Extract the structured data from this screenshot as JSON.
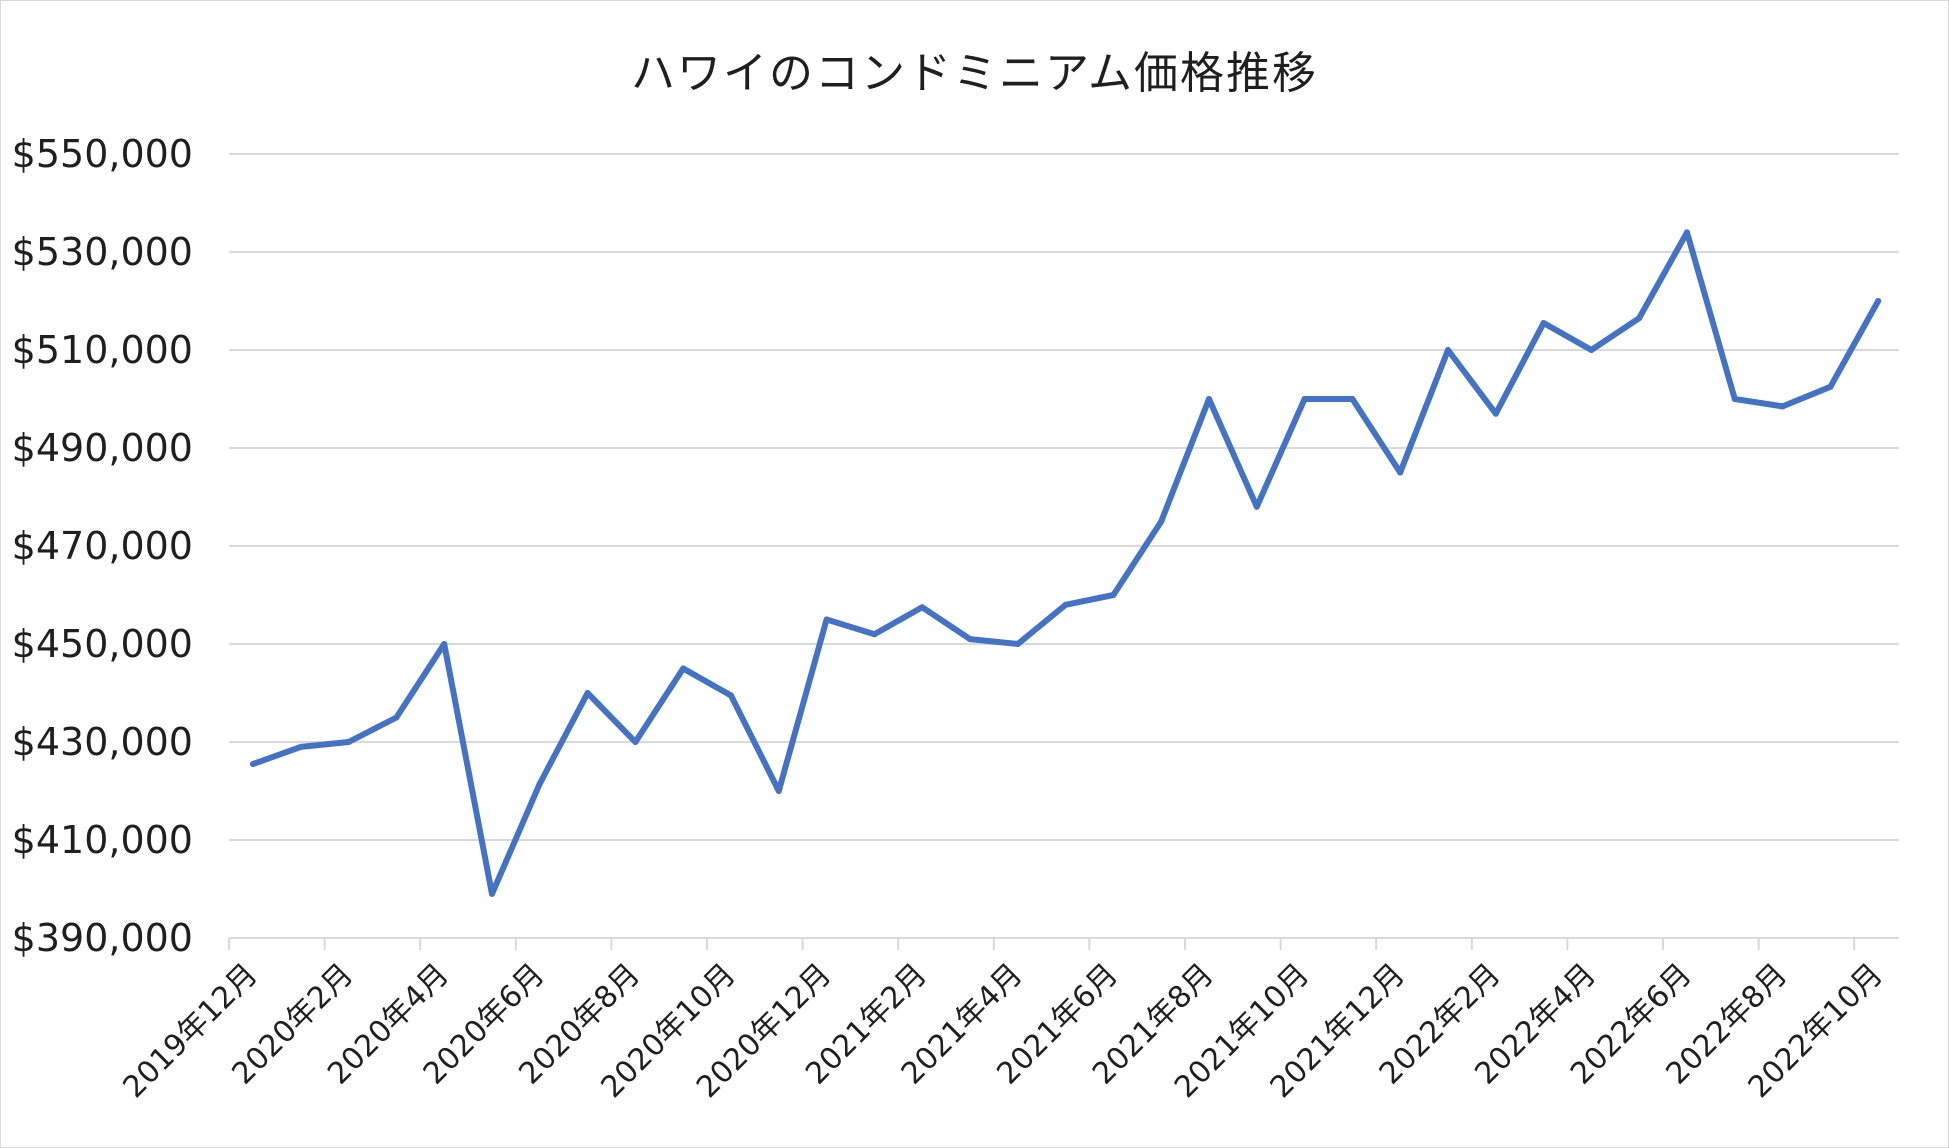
{
  "chart_data": {
    "type": "line",
    "title": "ハワイのコンドミニアム価格推移",
    "xlabel": "",
    "ylabel": "",
    "ylim": [
      390000,
      550000
    ],
    "y_ticks": [
      {
        "value": 390000,
        "label": "$390,000"
      },
      {
        "value": 410000,
        "label": "$410,000"
      },
      {
        "value": 430000,
        "label": "$430,000"
      },
      {
        "value": 450000,
        "label": "$450,000"
      },
      {
        "value": 470000,
        "label": "$470,000"
      },
      {
        "value": 490000,
        "label": "$490,000"
      },
      {
        "value": 510000,
        "label": "$510,000"
      },
      {
        "value": 530000,
        "label": "$530,000"
      },
      {
        "value": 550000,
        "label": "$550,000"
      }
    ],
    "x_tick_labels": [
      "2019年12月",
      "2020年2月",
      "2020年4月",
      "2020年6月",
      "2020年8月",
      "2020年10月",
      "2020年12月",
      "2021年2月",
      "2021年4月",
      "2021年6月",
      "2021年8月",
      "2021年10月",
      "2021年12月",
      "2022年2月",
      "2022年4月",
      "2022年6月",
      "2022年8月",
      "2022年10月"
    ],
    "grid": true,
    "legend": "none",
    "line_color": "#4472c4",
    "categories": [
      "2019年12月",
      "2020年1月",
      "2020年2月",
      "2020年3月",
      "2020年4月",
      "2020年5月",
      "2020年6月",
      "2020年7月",
      "2020年8月",
      "2020年9月",
      "2020年10月",
      "2020年11月",
      "2020年12月",
      "2021年1月",
      "2021年2月",
      "2021年3月",
      "2021年4月",
      "2021年5月",
      "2021年6月",
      "2021年7月",
      "2021年8月",
      "2021年9月",
      "2021年10月",
      "2021年11月",
      "2021年12月",
      "2022年1月",
      "2022年2月",
      "2022年3月",
      "2022年4月",
      "2022年5月",
      "2022年6月",
      "2022年7月",
      "2022年8月",
      "2022年9月",
      "2022年10月"
    ],
    "series": [
      {
        "values": [
          425500,
          429000,
          430000,
          435000,
          450000,
          399000,
          421500,
          440000,
          430000,
          445000,
          439500,
          420000,
          455000,
          452000,
          457500,
          451000,
          450000,
          458000,
          460000,
          475000,
          500000,
          478000,
          500000,
          500000,
          485000,
          510000,
          497000,
          515500,
          510000,
          516500,
          534000,
          500000,
          498500,
          502500,
          520000
        ]
      }
    ]
  }
}
